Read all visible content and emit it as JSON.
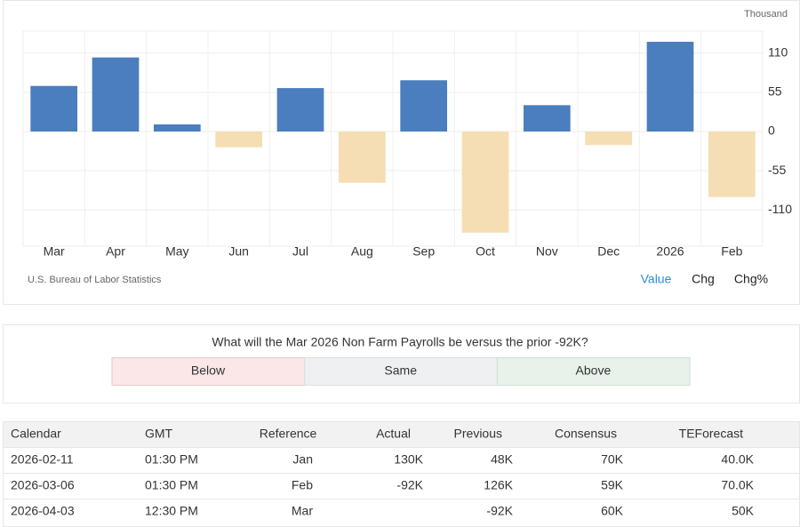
{
  "chart_data": {
    "type": "bar",
    "unit": "Thousand",
    "source": "U.S. Bureau of Labor Statistics",
    "categories": [
      "Mar",
      "Apr",
      "May",
      "Jun",
      "Jul",
      "Aug",
      "Sep",
      "Oct",
      "Nov",
      "Dec",
      "2026",
      "Feb"
    ],
    "values": [
      64,
      104,
      10,
      -22,
      61,
      -72,
      72,
      -142,
      37,
      -19,
      126,
      -92
    ],
    "color": "#4a7ebf",
    "negative_color": "#f5deb3",
    "ylim": [
      -161,
      141
    ],
    "yticks": [
      110,
      55,
      0,
      -55,
      -110
    ],
    "grid": true,
    "views": [
      "Value",
      "Chg",
      "Chg%"
    ],
    "active_view": 0
  },
  "poll": {
    "question": "What will the Mar 2026 Non Farm Payrolls be versus the prior -92K?",
    "options": [
      "Below",
      "Same",
      "Above"
    ]
  },
  "table": {
    "columns": [
      "Calendar",
      "GMT",
      "Reference",
      "Actual",
      "Previous",
      "Consensus",
      "TEForecast"
    ],
    "rows": [
      [
        "2026-02-11",
        "01:30 PM",
        "Jan",
        "130K",
        "48K",
        "70K",
        "40.0K"
      ],
      [
        "2026-03-06",
        "01:30 PM",
        "Feb",
        "-92K",
        "126K",
        "59K",
        "70.0K"
      ],
      [
        "2026-04-03",
        "12:30 PM",
        "Mar",
        null,
        "-92K",
        "60K",
        "50K"
      ]
    ]
  }
}
